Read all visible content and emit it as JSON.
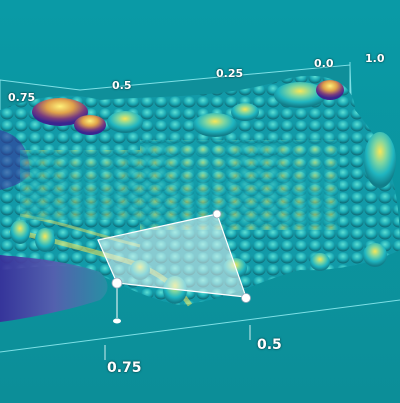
{
  "viewer": {
    "scene": "3D surface plot with selection box",
    "colors": {
      "background": "#0a9aa6",
      "plane": "#0c8e98",
      "surface_low": "#2a1f8c",
      "surface_mid": "#1fb5c0",
      "surface_high": "#f6e75a",
      "selection_fill": "#e8f4f2",
      "handle": "#ffffff"
    }
  },
  "axes": {
    "top": {
      "ticks": [
        "0.75",
        "0.5",
        "0.25",
        "0.0",
        "1.0"
      ]
    },
    "bottom": {
      "ticks": [
        "0.75",
        "0.5"
      ]
    }
  },
  "selection": {
    "label": "selection box",
    "handles": 4
  }
}
